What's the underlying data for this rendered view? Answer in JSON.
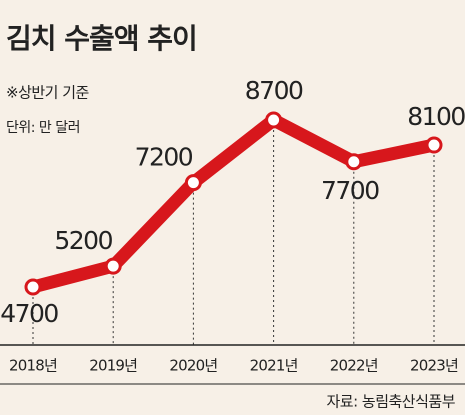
{
  "chart_data": {
    "type": "line",
    "title": "김치 수출액 추이",
    "subtitle": "※상반기 기준",
    "unit": "단위: 만 달러",
    "source": "자료: 농림축산식품부",
    "categories": [
      "2018년",
      "2019년",
      "2020년",
      "2021년",
      "2022년",
      "2023년"
    ],
    "series": [
      {
        "name": "김치 수출액",
        "color": "#d7171c",
        "values": [
          4700,
          5200,
          7200,
          8700,
          7700,
          8100
        ]
      }
    ]
  }
}
